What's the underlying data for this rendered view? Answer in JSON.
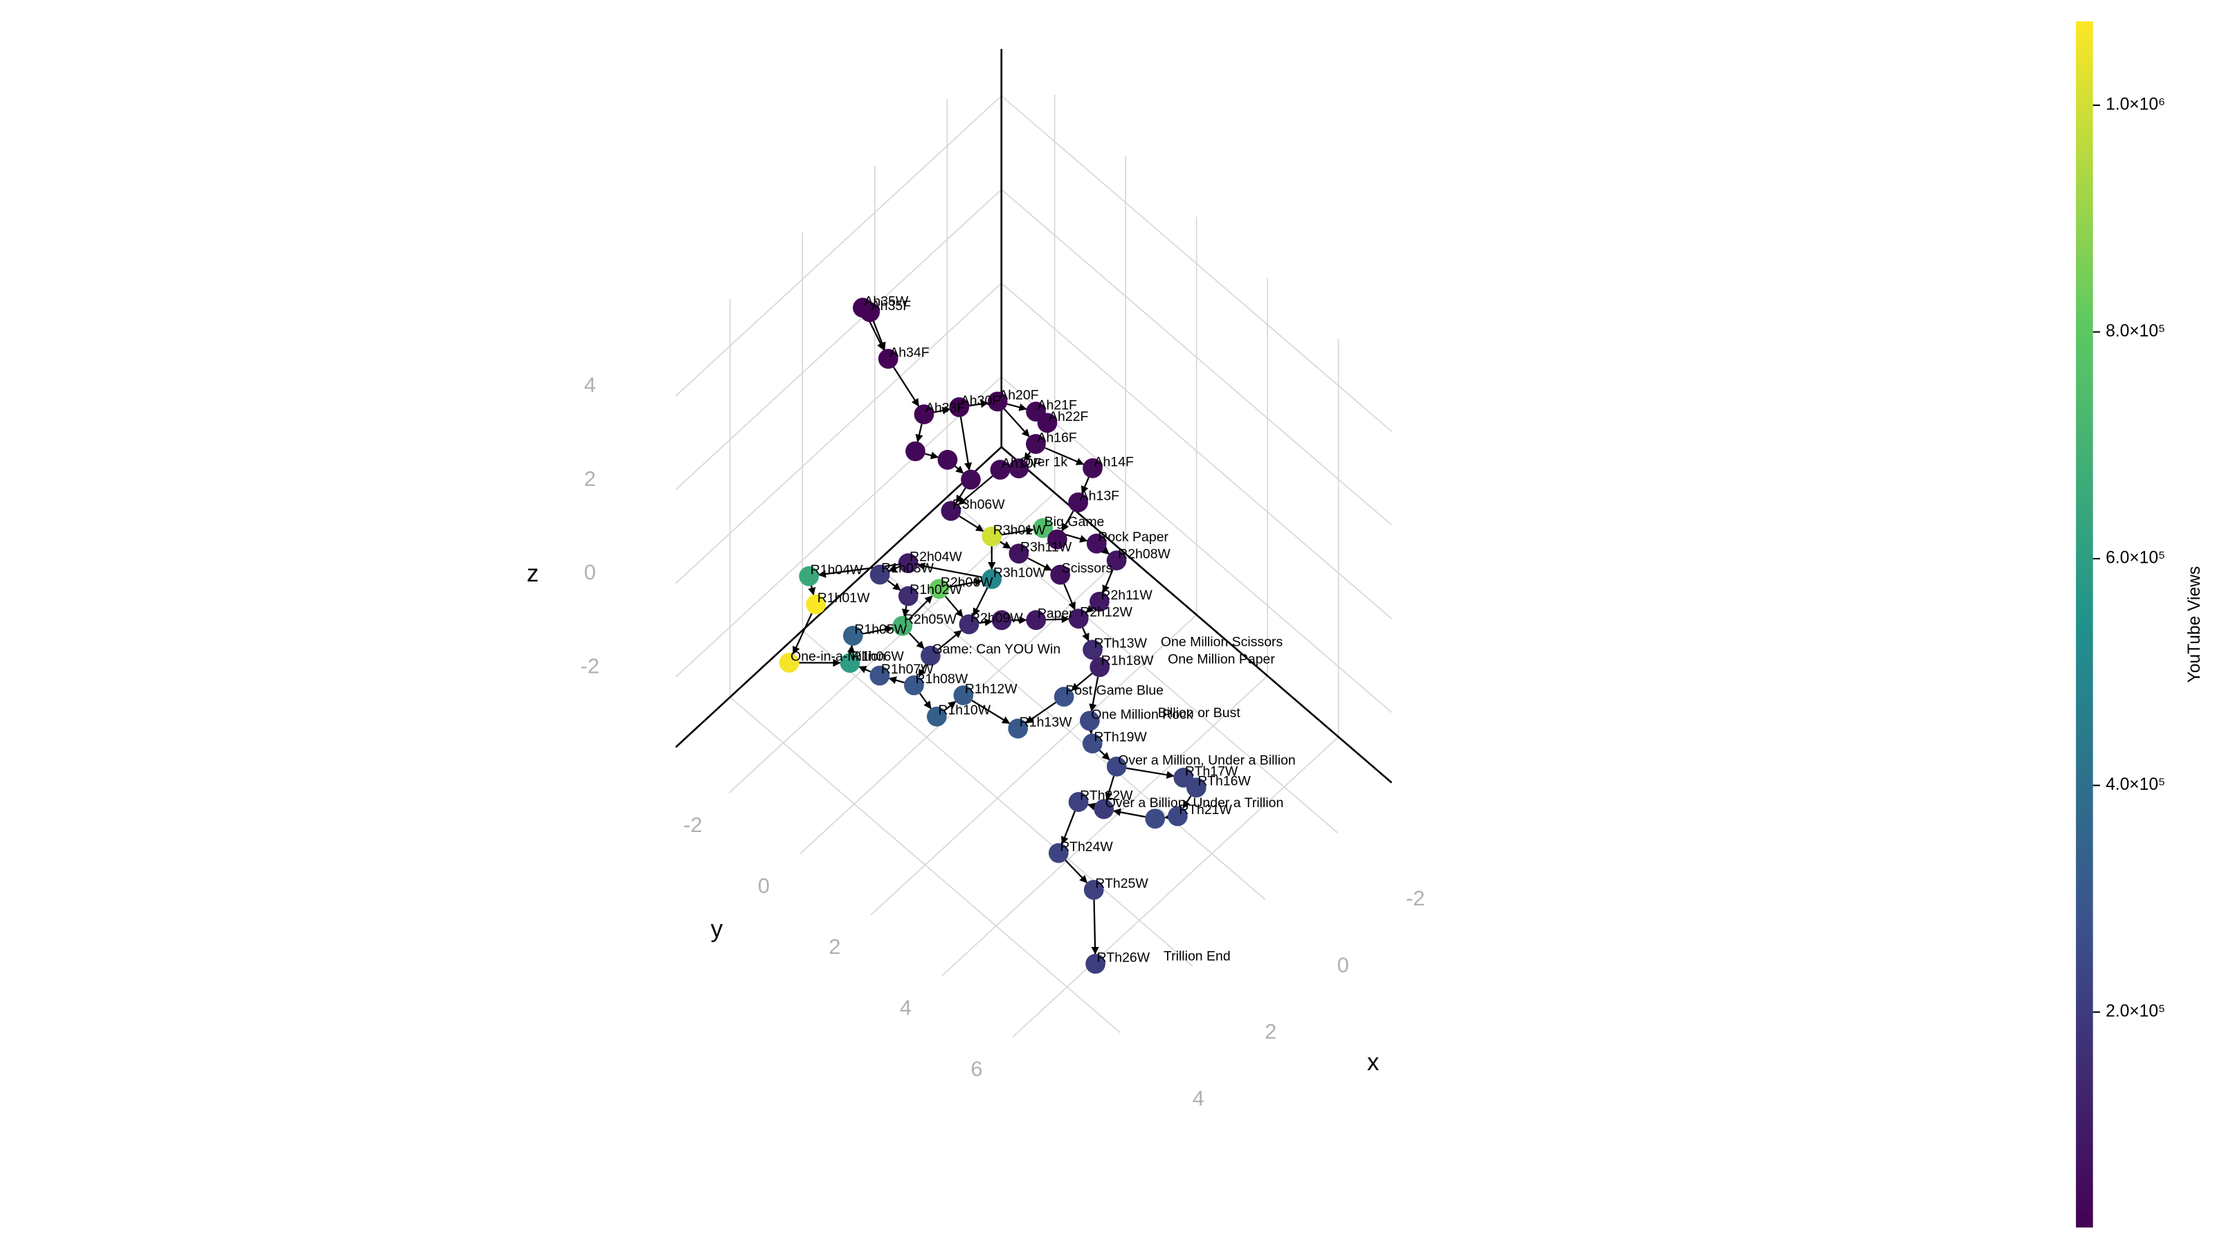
{
  "chart_data": {
    "type": "network3d",
    "xlabel": "x",
    "ylabel": "y",
    "zlabel": "z",
    "xlim": [
      -3.5,
      5.5
    ],
    "ylim": [
      -3.5,
      7.5
    ],
    "zlim": [
      -3.5,
      5
    ],
    "xticks": [
      -2,
      0,
      2,
      4
    ],
    "yticks": [
      -2,
      0,
      2,
      4,
      6
    ],
    "zticks": [
      -2,
      0,
      2,
      4
    ],
    "grid": true,
    "colormap": "viridis",
    "colorbar_label": "YouTube Views",
    "colorlim": [
      10000,
      1074000
    ],
    "colorbar_ticks": [
      {
        "value": 200000,
        "label": "2.0×10⁵"
      },
      {
        "value": 400000,
        "label": "4.0×10⁵"
      },
      {
        "value": 600000,
        "label": "6.0×10⁵"
      },
      {
        "value": 800000,
        "label": "8.0×10⁵"
      },
      {
        "value": 1000000,
        "label": "1.0×10⁶"
      }
    ],
    "nodes": {
      "labels": [
        "Ah35W",
        "Ah35F",
        "Ah34F",
        "Ah33F",
        "Ah30F",
        "Ah20F",
        "Ah21F",
        "Ah22F",
        "Ah16F",
        "Ah14F",
        "Ah13F",
        "Over 1k",
        "Ah10F",
        null,
        null,
        null,
        "R3h06W",
        "R3h01W",
        "Big Game",
        "Rock Paper",
        "R3h11W",
        "R2h08W",
        "Scissors",
        "R2h11W",
        "R2h12W",
        "R3h10W",
        "R2h04W",
        "R1h04W",
        "R1h01W",
        "One-in-a-Million",
        "R1h06W",
        "R1h05W",
        "R2h05W",
        "R2h06W",
        "R1h08W",
        "R1h07W",
        "R1h10W",
        "R1h12W",
        "Game: Can YOU Win",
        "R1h13W",
        "Post Game Blue",
        "RTh13W",
        "R1h18W",
        "One Million Rock",
        "RTh19W",
        "Over a Million, Under a Billion",
        "RTh17W",
        "RTh16W",
        "RTh21W",
        null,
        "Over a Billion, Under a Trillion",
        "RTh22W",
        "RTh24W",
        "RTh25W",
        "RTh26W",
        null,
        "R2h09W",
        null,
        "Paper",
        "R1h03W",
        "R1h02W"
      ],
      "titles": [
        null,
        null,
        null,
        null,
        null,
        null,
        null,
        null,
        null,
        null,
        null,
        null,
        null,
        null,
        null,
        null,
        null,
        null,
        null,
        null,
        null,
        null,
        null,
        null,
        null,
        null,
        null,
        null,
        null,
        null,
        null,
        null,
        null,
        null,
        null,
        null,
        null,
        null,
        null,
        null,
        null,
        "One Million Scissors",
        "One Million Paper",
        "Billion or Bust",
        null,
        null,
        null,
        null,
        null,
        null,
        null,
        null,
        null,
        null,
        "Trillion End",
        null,
        null,
        null,
        null,
        null,
        null
      ],
      "x": [
        2.0,
        1.9,
        2.09,
        2.11,
        1.53,
        0.93,
        0.43,
        0.38,
        0.57,
        -0.03,
        0.33,
        1.03,
        1.3,
        2.29,
        1.92,
        1.7,
        2.16,
        1.72,
        0.98,
        0.36,
        1.48,
        0.21,
        1.11,
        0.86,
        1.33,
        2.09,
        2.96,
        4.34,
        4.54,
        5.22,
        4.41,
        4.24,
        3.5,
        2.8,
        3.76,
        4.14,
        3.65,
        3.11,
        3.37,
        2.68,
        1.79,
        0.97,
        1.0,
        1.53,
        1.7,
        1.59,
        0.87,
        0.78,
        1.11,
        1.45,
        2.13,
        2.43,
        2.98,
        2.79,
        3.48,
        0.82,
        2.66,
        2.16,
        1.7,
        3.37,
        3.25
      ],
      "y": [
        -1.8,
        -1.7,
        -0.99,
        0.04,
        0.44,
        0.91,
        1.48,
        1.75,
        1.62,
        2.61,
        2.57,
        1.61,
        1.36,
        -0.02,
        0.51,
        0.94,
        0.85,
        1.55,
        2.24,
        3.12,
        2.07,
        3.53,
        2.86,
        3.71,
        3.6,
        1.93,
        0.46,
        -0.93,
        -0.53,
        -0.59,
        0.3,
        0.21,
        0.85,
        1.17,
        1.44,
        0.86,
        1.97,
        2.17,
        1.51,
        3.27,
        3.66,
        3.63,
        3.86,
        4.12,
        4.37,
        4.94,
        6.09,
        6.36,
        6.17,
        5.88,
        5.13,
        4.72,
        4.72,
        5.52,
        6.27,
        2.48,
        1.87,
        2.28,
        2.78,
        0.08,
        0.76
      ],
      "z": [
        4.5,
        4.4,
        4.0,
        3.5,
        3.5,
        3.5,
        3.3,
        3.2,
        2.8,
        2.5,
        2.0,
        2.6,
        2.6,
        2.8,
        2.7,
        2.4,
        2.0,
        1.6,
        1.7,
        1.5,
        1.4,
        1.3,
        1.2,
        1.0,
        0.9,
        1.2,
        1.2,
        1.0,
        0.8,
        0.0,
        0.0,
        0.4,
        0.5,
        1.0,
        -0.2,
        -0.1,
        -0.6,
        -0.4,
        0.2,
        -0.7,
        -0.4,
        0.0,
        -0.2,
        -0.8,
        -1.0,
        -1.2,
        -1.2,
        -1.3,
        -1.8,
        -1.8,
        -1.6,
        -1.5,
        -2.2,
        -2.6,
        -3.2,
        1.5,
        0.6,
        0.6,
        0.6,
        1.0,
        0.9
      ],
      "values": [
        20000,
        15000,
        18000,
        22000,
        20000,
        25000,
        30000,
        28000,
        35000,
        40000,
        45000,
        50000,
        40000,
        30000,
        35000,
        38000,
        60000,
        1000000,
        750000,
        60000,
        70000,
        80000,
        60000,
        90000,
        90000,
        500000,
        100000,
        650000,
        1070000,
        1060000,
        600000,
        350000,
        700000,
        820000,
        300000,
        280000,
        330000,
        320000,
        200000,
        300000,
        280000,
        150000,
        120000,
        250000,
        260000,
        240000,
        230000,
        230000,
        240000,
        250000,
        200000,
        220000,
        230000,
        220000,
        210000,
        40000,
        150000,
        100000,
        90000,
        200000,
        150000
      ]
    },
    "edges": [
      [
        0,
        2
      ],
      [
        1,
        2
      ],
      [
        2,
        3
      ],
      [
        3,
        4
      ],
      [
        3,
        13
      ],
      [
        4,
        5
      ],
      [
        5,
        6
      ],
      [
        6,
        7
      ],
      [
        5,
        8
      ],
      [
        8,
        9
      ],
      [
        9,
        10
      ],
      [
        8,
        11
      ],
      [
        11,
        12
      ],
      [
        12,
        16
      ],
      [
        13,
        14
      ],
      [
        14,
        15
      ],
      [
        15,
        16
      ],
      [
        4,
        15
      ],
      [
        16,
        17
      ],
      [
        17,
        18
      ],
      [
        18,
        19
      ],
      [
        17,
        20
      ],
      [
        20,
        22
      ],
      [
        19,
        21
      ],
      [
        21,
        23
      ],
      [
        22,
        24
      ],
      [
        23,
        24
      ],
      [
        10,
        55
      ],
      [
        55,
        18
      ],
      [
        17,
        25
      ],
      [
        25,
        26
      ],
      [
        26,
        27
      ],
      [
        27,
        28
      ],
      [
        28,
        29
      ],
      [
        29,
        30
      ],
      [
        30,
        31
      ],
      [
        31,
        32
      ],
      [
        32,
        33
      ],
      [
        33,
        25
      ],
      [
        26,
        59
      ],
      [
        59,
        60
      ],
      [
        60,
        32
      ],
      [
        32,
        38
      ],
      [
        38,
        34
      ],
      [
        34,
        35
      ],
      [
        35,
        30
      ],
      [
        34,
        36
      ],
      [
        36,
        37
      ],
      [
        37,
        39
      ],
      [
        38,
        56
      ],
      [
        56,
        57
      ],
      [
        57,
        58
      ],
      [
        58,
        24
      ],
      [
        24,
        41
      ],
      [
        41,
        42
      ],
      [
        42,
        40
      ],
      [
        40,
        39
      ],
      [
        42,
        43
      ],
      [
        43,
        44
      ],
      [
        44,
        45
      ],
      [
        45,
        46
      ],
      [
        46,
        47
      ],
      [
        47,
        48
      ],
      [
        48,
        49
      ],
      [
        49,
        50
      ],
      [
        45,
        50
      ],
      [
        50,
        51
      ],
      [
        51,
        52
      ],
      [
        52,
        53
      ],
      [
        53,
        54
      ],
      [
        25,
        56
      ],
      [
        33,
        56
      ]
    ]
  }
}
